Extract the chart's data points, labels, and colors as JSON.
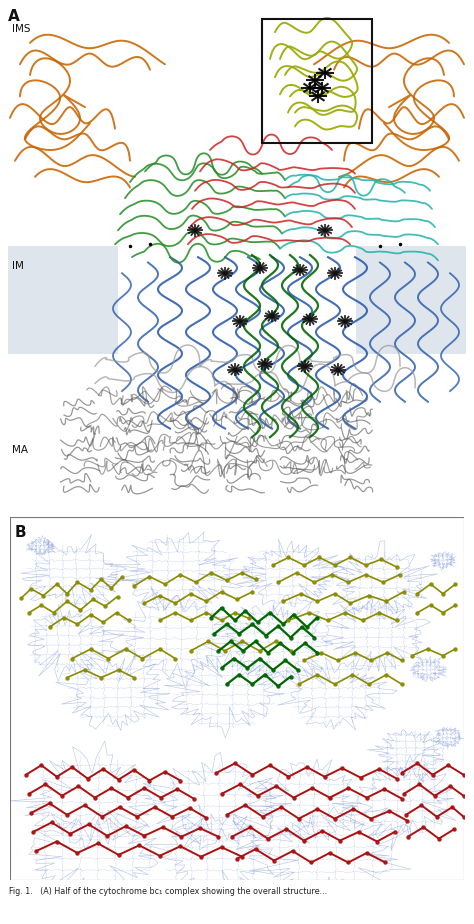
{
  "figure_width": 4.74,
  "figure_height": 9.24,
  "dpi": 100,
  "panel_A": {
    "label": "A",
    "ims_label": "IMS",
    "im_label": "IM",
    "ma_label": "MA",
    "bg_color": "#ffffff",
    "membrane_color": "#c8d4e0",
    "membrane_alpha": 0.6,
    "box_color": "#111111",
    "colors": {
      "orange": "#c86400",
      "green": "#228B22",
      "teal": "#20B2AA",
      "red": "#CC2222",
      "blue": "#2255AA",
      "dk_green": "#006400",
      "yellow_green": "#9aaa00",
      "gray": "#606060",
      "outline_gray": "#999999",
      "black": "#111111",
      "dk_blue": "#1a3070"
    }
  },
  "panel_B": {
    "label": "B",
    "bg_color": "#ffffff",
    "border_color": "#888888",
    "mesh_color": "#5577cc",
    "yg_color": "#8B8B00",
    "green_color": "#006600",
    "red_color": "#AA1111"
  },
  "caption_text": "Fig. 1.   (A) Half of the cytochrome bc₁ complex showing the overall structure..."
}
